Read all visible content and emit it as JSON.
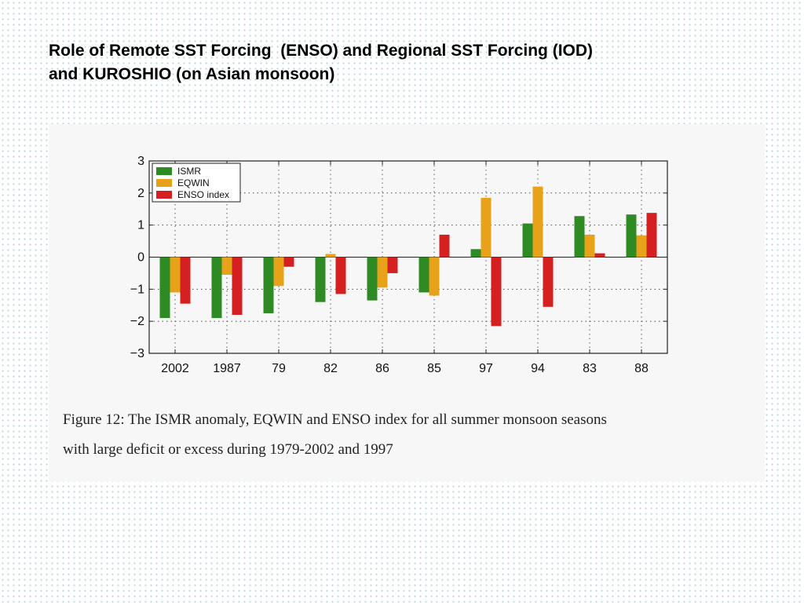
{
  "slide": {
    "title_line1": "Role of Remote SST Forcing  (ENSO) and Regional SST Forcing (IOD)",
    "title_line2": "and KUROSHIO (on Asian monsoon)"
  },
  "caption": {
    "line1": "Figure 12: The ISMR anomaly, EQWIN and ENSO index for all summer monsoon seasons",
    "line2": "with large deficit or excess during 1979-2002 and 1997"
  },
  "chart_data": {
    "type": "bar",
    "categories": [
      "2002",
      "1987",
      "79",
      "82",
      "86",
      "85",
      "97",
      "94",
      "83",
      "88"
    ],
    "series": [
      {
        "name": "ISMR",
        "color": "#2e8b24",
        "values": [
          -1.9,
          -1.9,
          -1.75,
          -1.4,
          -1.35,
          -1.1,
          0.25,
          1.05,
          1.28,
          1.33
        ]
      },
      {
        "name": "EQWIN",
        "color": "#e8a21a",
        "values": [
          -1.1,
          -0.55,
          -0.9,
          0.1,
          -0.95,
          -1.2,
          1.85,
          2.2,
          0.7,
          0.68
        ]
      },
      {
        "name": "ENSO index",
        "color": "#d42020",
        "values": [
          -1.45,
          -1.8,
          -0.3,
          -1.15,
          -0.5,
          0.7,
          -2.15,
          -1.55,
          0.12,
          1.38
        ]
      }
    ],
    "ylim": [
      -3,
      3
    ],
    "yticks": [
      3,
      2,
      1,
      0,
      -1,
      -2,
      -3
    ],
    "ytick_labels": [
      "3",
      "2",
      "1",
      "0",
      "−1",
      "−2",
      "−3"
    ],
    "grid": true,
    "legend_position": "top-left"
  }
}
